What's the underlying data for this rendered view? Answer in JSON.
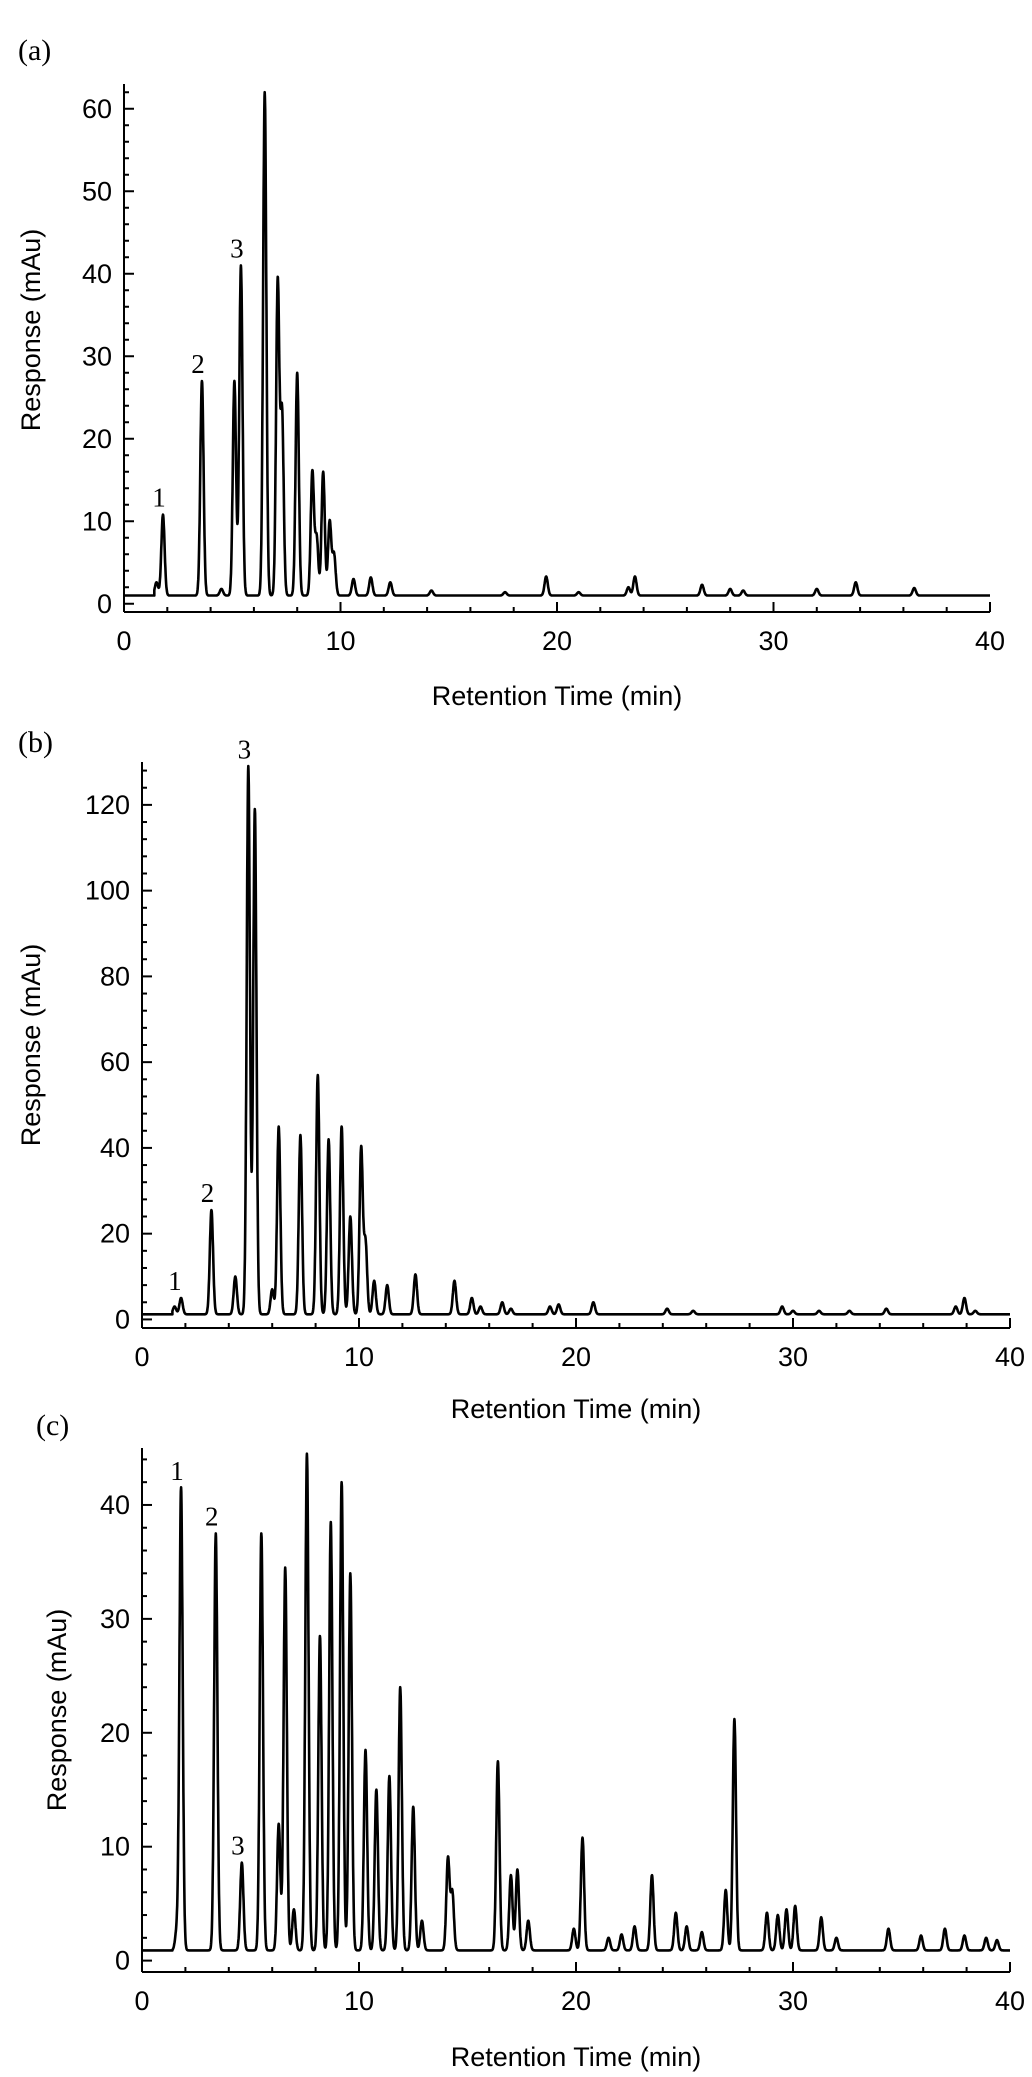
{
  "chart_data": [
    {
      "panel_label": "(a)",
      "type": "line",
      "xlabel": "Retention Time (min)",
      "ylabel": "Response (mAu)",
      "xlim": [
        0,
        40
      ],
      "ylim": [
        -1,
        63
      ],
      "x_ticks": [
        0,
        10,
        20,
        30,
        40
      ],
      "y_ticks": [
        0,
        10,
        20,
        30,
        40,
        50,
        60
      ],
      "grid": false,
      "baseline": 1.0,
      "peak_labels": [
        {
          "text": "1",
          "x": 1.8,
          "y": 10.8
        },
        {
          "text": "2",
          "x": 3.6,
          "y": 27
        },
        {
          "text": "3",
          "x": 5.4,
          "y": 41
        }
      ],
      "peaks": [
        {
          "x": 1.5,
          "y": 2.6
        },
        {
          "x": 1.8,
          "y": 10.8
        },
        {
          "x": 3.6,
          "y": 27
        },
        {
          "x": 4.5,
          "y": 1.8
        },
        {
          "x": 5.1,
          "y": 27
        },
        {
          "x": 5.4,
          "y": 41
        },
        {
          "x": 6.5,
          "y": 62
        },
        {
          "x": 7.1,
          "y": 39
        },
        {
          "x": 7.3,
          "y": 23
        },
        {
          "x": 8.0,
          "y": 28
        },
        {
          "x": 8.7,
          "y": 16
        },
        {
          "x": 8.9,
          "y": 8
        },
        {
          "x": 9.2,
          "y": 16
        },
        {
          "x": 9.5,
          "y": 10
        },
        {
          "x": 9.7,
          "y": 6
        },
        {
          "x": 10.6,
          "y": 3
        },
        {
          "x": 11.4,
          "y": 3.2
        },
        {
          "x": 12.3,
          "y": 2.6
        },
        {
          "x": 14.2,
          "y": 1.6
        },
        {
          "x": 17.6,
          "y": 1.4
        },
        {
          "x": 19.5,
          "y": 3.3
        },
        {
          "x": 21.0,
          "y": 1.4
        },
        {
          "x": 23.3,
          "y": 2.0
        },
        {
          "x": 23.6,
          "y": 3.3
        },
        {
          "x": 26.7,
          "y": 2.3
        },
        {
          "x": 28.0,
          "y": 1.8
        },
        {
          "x": 28.6,
          "y": 1.6
        },
        {
          "x": 32.0,
          "y": 1.8
        },
        {
          "x": 33.8,
          "y": 2.6
        },
        {
          "x": 36.5,
          "y": 1.9
        }
      ]
    },
    {
      "panel_label": "(b)",
      "type": "line",
      "xlabel": "Retention Time (min)",
      "ylabel": "Response (mAu)",
      "xlim": [
        0,
        40
      ],
      "ylim": [
        -2,
        130
      ],
      "x_ticks": [
        0,
        10,
        20,
        30,
        40
      ],
      "y_ticks": [
        0,
        20,
        40,
        60,
        80,
        100,
        120
      ],
      "grid": false,
      "baseline": 1.2,
      "peak_labels": [
        {
          "text": "1",
          "x": 1.7,
          "y": 5
        },
        {
          "text": "2",
          "x": 3.2,
          "y": 25.5
        },
        {
          "text": "3",
          "x": 4.9,
          "y": 129
        }
      ],
      "peaks": [
        {
          "x": 1.5,
          "y": 3
        },
        {
          "x": 1.8,
          "y": 5
        },
        {
          "x": 3.2,
          "y": 25.5
        },
        {
          "x": 4.3,
          "y": 10
        },
        {
          "x": 4.9,
          "y": 129
        },
        {
          "x": 5.2,
          "y": 119
        },
        {
          "x": 6.0,
          "y": 7
        },
        {
          "x": 6.3,
          "y": 45
        },
        {
          "x": 7.3,
          "y": 43
        },
        {
          "x": 8.1,
          "y": 57
        },
        {
          "x": 8.6,
          "y": 42
        },
        {
          "x": 9.2,
          "y": 45
        },
        {
          "x": 9.6,
          "y": 24
        },
        {
          "x": 10.1,
          "y": 40
        },
        {
          "x": 10.3,
          "y": 18
        },
        {
          "x": 10.7,
          "y": 9
        },
        {
          "x": 11.3,
          "y": 8
        },
        {
          "x": 12.6,
          "y": 10.5
        },
        {
          "x": 14.4,
          "y": 9
        },
        {
          "x": 15.2,
          "y": 5
        },
        {
          "x": 15.6,
          "y": 3
        },
        {
          "x": 16.6,
          "y": 4
        },
        {
          "x": 17.0,
          "y": 2.5
        },
        {
          "x": 18.8,
          "y": 3
        },
        {
          "x": 19.2,
          "y": 3.5
        },
        {
          "x": 20.8,
          "y": 4
        },
        {
          "x": 24.2,
          "y": 2.5
        },
        {
          "x": 25.4,
          "y": 2
        },
        {
          "x": 29.5,
          "y": 3
        },
        {
          "x": 30.0,
          "y": 2
        },
        {
          "x": 31.2,
          "y": 2
        },
        {
          "x": 32.6,
          "y": 2
        },
        {
          "x": 34.3,
          "y": 2.5
        },
        {
          "x": 37.5,
          "y": 3
        },
        {
          "x": 37.9,
          "y": 5
        },
        {
          "x": 38.4,
          "y": 2
        }
      ]
    },
    {
      "panel_label": "(c)",
      "type": "line",
      "xlabel": "Retention Time (min)",
      "ylabel": "Response (mAu)",
      "xlim": [
        0,
        40
      ],
      "ylim": [
        -1,
        45
      ],
      "x_ticks": [
        0,
        10,
        20,
        30,
        40
      ],
      "y_ticks": [
        0,
        10,
        20,
        30,
        40
      ],
      "grid": false,
      "baseline": 0.9,
      "peak_labels": [
        {
          "text": "1",
          "x": 1.8,
          "y": 41.5
        },
        {
          "text": "2",
          "x": 3.4,
          "y": 37.5
        },
        {
          "text": "3",
          "x": 4.6,
          "y": 8.6
        }
      ],
      "peaks": [
        {
          "x": 1.6,
          "y": 2.6
        },
        {
          "x": 1.8,
          "y": 41.5
        },
        {
          "x": 3.4,
          "y": 37.5
        },
        {
          "x": 4.6,
          "y": 8.6
        },
        {
          "x": 5.5,
          "y": 37.5
        },
        {
          "x": 6.3,
          "y": 12
        },
        {
          "x": 6.6,
          "y": 34.5
        },
        {
          "x": 7.0,
          "y": 4.5
        },
        {
          "x": 7.6,
          "y": 44.5
        },
        {
          "x": 8.2,
          "y": 28.5
        },
        {
          "x": 8.7,
          "y": 38.5
        },
        {
          "x": 9.2,
          "y": 42
        },
        {
          "x": 9.6,
          "y": 34
        },
        {
          "x": 10.3,
          "y": 18.5
        },
        {
          "x": 10.8,
          "y": 15
        },
        {
          "x": 11.4,
          "y": 16.2
        },
        {
          "x": 11.9,
          "y": 24
        },
        {
          "x": 12.5,
          "y": 13.5
        },
        {
          "x": 12.9,
          "y": 3.5
        },
        {
          "x": 14.1,
          "y": 9
        },
        {
          "x": 14.3,
          "y": 6
        },
        {
          "x": 16.4,
          "y": 17.5
        },
        {
          "x": 17.0,
          "y": 7.5
        },
        {
          "x": 17.3,
          "y": 8
        },
        {
          "x": 17.8,
          "y": 3.5
        },
        {
          "x": 19.9,
          "y": 2.8
        },
        {
          "x": 20.3,
          "y": 10.8
        },
        {
          "x": 21.5,
          "y": 2
        },
        {
          "x": 22.1,
          "y": 2.3
        },
        {
          "x": 22.7,
          "y": 3
        },
        {
          "x": 23.5,
          "y": 7.5
        },
        {
          "x": 24.6,
          "y": 4.2
        },
        {
          "x": 25.1,
          "y": 3
        },
        {
          "x": 25.8,
          "y": 2.5
        },
        {
          "x": 26.9,
          "y": 6.2
        },
        {
          "x": 27.3,
          "y": 21.2
        },
        {
          "x": 28.8,
          "y": 4.2
        },
        {
          "x": 29.3,
          "y": 4
        },
        {
          "x": 29.7,
          "y": 4.5
        },
        {
          "x": 30.1,
          "y": 4.8
        },
        {
          "x": 31.3,
          "y": 3.8
        },
        {
          "x": 32.0,
          "y": 2
        },
        {
          "x": 34.4,
          "y": 2.8
        },
        {
          "x": 35.9,
          "y": 2.2
        },
        {
          "x": 37.0,
          "y": 2.8
        },
        {
          "x": 37.9,
          "y": 2.2
        },
        {
          "x": 38.9,
          "y": 2
        },
        {
          "x": 39.4,
          "y": 1.8
        }
      ]
    }
  ]
}
